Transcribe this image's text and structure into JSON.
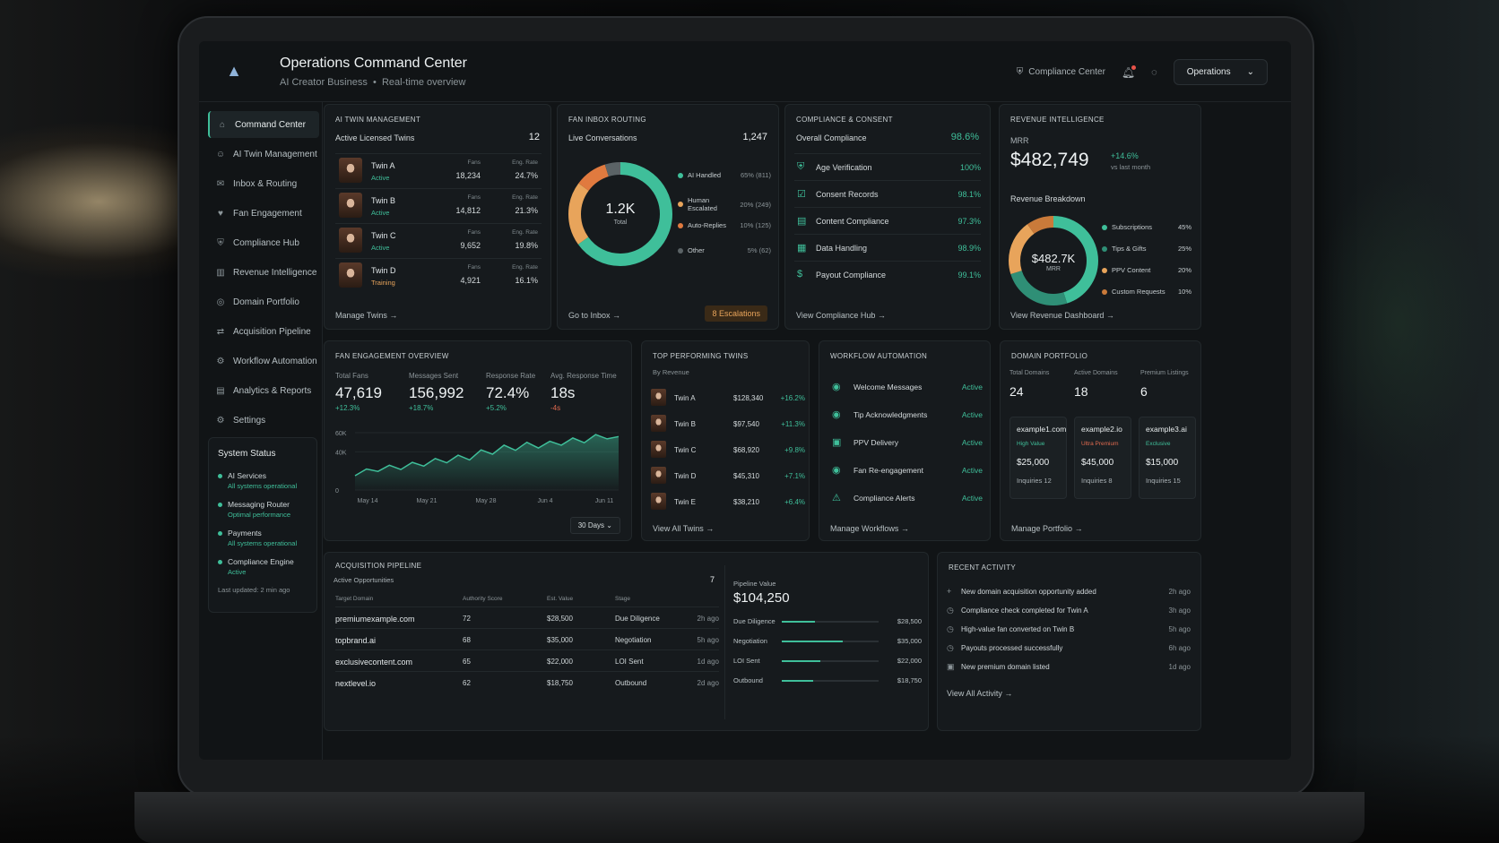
{
  "header": {
    "title": "Operations Command Center",
    "subtitle": "AI Creator Business",
    "subtitle_sep": "•",
    "subtitle_right": "Real-time overview",
    "compliance_link": "Compliance Center",
    "workspace": "Operations"
  },
  "sidebar": {
    "items": [
      {
        "label": "Command Center",
        "icon": "home-icon",
        "glyph": "⌂"
      },
      {
        "label": "AI Twin Management",
        "icon": "users-icon",
        "glyph": "☺"
      },
      {
        "label": "Inbox & Routing",
        "icon": "inbox-icon",
        "glyph": "✉"
      },
      {
        "label": "Fan Engagement",
        "icon": "chat-icon",
        "glyph": "♥"
      },
      {
        "label": "Compliance Hub",
        "icon": "shield-icon",
        "glyph": "⛨"
      },
      {
        "label": "Revenue Intelligence",
        "icon": "bar-chart-icon",
        "glyph": "▥"
      },
      {
        "label": "Domain Portfolio",
        "icon": "globe-icon",
        "glyph": "◎"
      },
      {
        "label": "Acquisition Pipeline",
        "icon": "pipeline-icon",
        "glyph": "⇄"
      },
      {
        "label": "Workflow Automation",
        "icon": "workflow-icon",
        "glyph": "⚙"
      },
      {
        "label": "Analytics & Reports",
        "icon": "analytics-icon",
        "glyph": "▤"
      },
      {
        "label": "Settings",
        "icon": "gear-icon",
        "glyph": "⚙"
      }
    ],
    "status": {
      "title": "System Status",
      "rows": [
        {
          "name": "AI Services",
          "state": "All systems operational"
        },
        {
          "name": "Messaging Router",
          "state": "Optimal performance"
        },
        {
          "name": "Payments",
          "state": "All systems operational"
        },
        {
          "name": "Compliance Engine",
          "state": "Active"
        }
      ],
      "updated": "Last updated: 2 min ago"
    }
  },
  "twins": {
    "title": "AI TWIN MANAGEMENT",
    "active_label": "Active Licensed Twins",
    "active_count": "12",
    "fans_label": "Fans",
    "eng_label": "Eng. Rate",
    "rows": [
      {
        "name": "Twin A",
        "state": "Active",
        "fans": "18,234",
        "eng": "24.7%"
      },
      {
        "name": "Twin B",
        "state": "Active",
        "fans": "14,812",
        "eng": "21.3%"
      },
      {
        "name": "Twin C",
        "state": "Active",
        "fans": "9,652",
        "eng": "19.8%"
      },
      {
        "name": "Twin D",
        "state": "Training",
        "fans": "4,921",
        "eng": "16.1%"
      }
    ],
    "link": "Manage Twins"
  },
  "inbox": {
    "title": "FAN INBOX ROUTING",
    "live_label": "Live Conversations",
    "live_count": "1,247",
    "center_value": "1.2K",
    "center_label": "Total",
    "legend": [
      {
        "label": "AI Handled",
        "value": "65% (811)",
        "pct": 65,
        "color": "#3fbf9a"
      },
      {
        "label": "Human Escalated",
        "value": "20% (249)",
        "pct": 20,
        "color": "#e8a45b"
      },
      {
        "label": "Auto-Replies",
        "value": "10% (125)",
        "pct": 10,
        "color": "#e07a3f"
      },
      {
        "label": "Other",
        "value": "5% (62)",
        "pct": 5,
        "color": "#5b6366"
      }
    ],
    "link": "Go to Inbox",
    "escalations": "8 Escalations"
  },
  "compliance": {
    "title": "COMPLIANCE & CONSENT",
    "overall_label": "Overall Compliance",
    "overall_value": "98.6%",
    "rows": [
      {
        "name": "Age Verification",
        "value": "100%",
        "icon": "shield-check-icon"
      },
      {
        "name": "Consent Records",
        "value": "98.1%",
        "icon": "document-check-icon"
      },
      {
        "name": "Content Compliance",
        "value": "97.3%",
        "icon": "clipboard-icon"
      },
      {
        "name": "Data Handling",
        "value": "98.9%",
        "icon": "database-icon"
      },
      {
        "name": "Payout Compliance",
        "value": "99.1%",
        "icon": "dollar-icon"
      }
    ],
    "link": "View Compliance Hub"
  },
  "revenue": {
    "title": "REVENUE INTELLIGENCE",
    "mrr_label": "MRR",
    "mrr_value": "$482,749",
    "mrr_change": "+14.6%",
    "mrr_change_label": "vs last month",
    "breakdown_label": "Revenue Breakdown",
    "center_value": "$482.7K",
    "center_label": "MRR",
    "legend": [
      {
        "label": "Subscriptions",
        "value": "45%",
        "pct": 45,
        "color": "#3fbf9a"
      },
      {
        "label": "Tips & Gifts",
        "value": "25%",
        "pct": 25,
        "color": "#2f8f76"
      },
      {
        "label": "PPV Content",
        "value": "20%",
        "pct": 20,
        "color": "#e8a45b"
      },
      {
        "label": "Custom Requests",
        "value": "10%",
        "pct": 10,
        "color": "#c97a3a"
      }
    ],
    "link": "View Revenue Dashboard"
  },
  "engagement": {
    "title": "FAN ENGAGEMENT OVERVIEW",
    "kpis": [
      {
        "label": "Total Fans",
        "value": "47,619",
        "change": "+12.3%"
      },
      {
        "label": "Messages Sent",
        "value": "156,992",
        "change": "+18.7%"
      },
      {
        "label": "Response Rate",
        "value": "72.4%",
        "change": "+5.2%"
      },
      {
        "label": "Avg. Response Time",
        "value": "18s",
        "change": "-4s"
      }
    ],
    "range_button": "30 Days",
    "chart_data": {
      "type": "area",
      "y_ticks": [
        "60K",
        "40K",
        "0"
      ],
      "x_ticks": [
        "May 14",
        "May 21",
        "May 28",
        "Jun 4",
        "Jun 11"
      ],
      "ylim": [
        0,
        60000
      ],
      "values": [
        15000,
        22000,
        19500,
        26000,
        21500,
        29000,
        25000,
        33000,
        28500,
        36500,
        31500,
        42000,
        37500,
        47000,
        41500,
        50000,
        44000,
        51000,
        47000,
        54500,
        49500,
        58000,
        53500,
        56000
      ]
    }
  },
  "top_twins": {
    "title": "TOP PERFORMING TWINS",
    "subtitle": "By Revenue",
    "rows": [
      {
        "name": "Twin A",
        "revenue": "$128,340",
        "change": "+16.2%"
      },
      {
        "name": "Twin B",
        "revenue": "$97,540",
        "change": "+11.3%"
      },
      {
        "name": "Twin C",
        "revenue": "$68,920",
        "change": "+9.8%"
      },
      {
        "name": "Twin D",
        "revenue": "$45,310",
        "change": "+7.1%"
      },
      {
        "name": "Twin E",
        "revenue": "$38,210",
        "change": "+6.4%"
      }
    ],
    "link": "View All Twins"
  },
  "workflow": {
    "title": "WORKFLOW AUTOMATION",
    "rows": [
      {
        "name": "Welcome Messages",
        "state": "Active"
      },
      {
        "name": "Tip Acknowledgments",
        "state": "Active"
      },
      {
        "name": "PPV Delivery",
        "state": "Active"
      },
      {
        "name": "Fan Re-engagement",
        "state": "Active"
      },
      {
        "name": "Compliance Alerts",
        "state": "Active"
      }
    ],
    "link": "Manage Workflows"
  },
  "domains": {
    "title": "DOMAIN PORTFOLIO",
    "stats": [
      {
        "label": "Total Domains",
        "value": "24"
      },
      {
        "label": "Active Domains",
        "value": "18"
      },
      {
        "label": "Premium Listings",
        "value": "6"
      }
    ],
    "cards": [
      {
        "name": "example1.com",
        "tag": "High Value",
        "price": "$25,000",
        "inquiries": "Inquiries  12"
      },
      {
        "name": "example2.io",
        "tag": "Ultra Premium",
        "price": "$45,000",
        "inquiries": "Inquiries  8"
      },
      {
        "name": "example3.ai",
        "tag": "Exclusive",
        "price": "$15,000",
        "inquiries": "Inquiries  15"
      }
    ],
    "link": "Manage Portfolio"
  },
  "acquisition": {
    "title": "ACQUISITION PIPELINE",
    "active_label": "Active Opportunities",
    "active_count": "7",
    "columns": [
      "Target Domain",
      "Authority Score",
      "Est. Value",
      "Stage"
    ],
    "rows": [
      {
        "domain": "premiumexample.com",
        "score": "72",
        "value": "$28,500",
        "stage": "Due Diligence",
        "time": "2h ago"
      },
      {
        "domain": "topbrand.ai",
        "score": "68",
        "value": "$35,000",
        "stage": "Negotiation",
        "time": "5h ago"
      },
      {
        "domain": "exclusivecontent.com",
        "score": "65",
        "value": "$22,000",
        "stage": "LOI Sent",
        "time": "1d ago"
      },
      {
        "domain": "nextlevel.io",
        "score": "62",
        "value": "$18,750",
        "stage": "Outbound",
        "time": "2d ago"
      }
    ],
    "pipeline_label": "Pipeline Value",
    "pipeline_value": "$104,250",
    "stages": [
      {
        "name": "Due Diligence",
        "value": "$28,500",
        "pct": 34
      },
      {
        "name": "Negotiation",
        "value": "$35,000",
        "pct": 63
      },
      {
        "name": "LOI Sent",
        "value": "$22,000",
        "pct": 40
      },
      {
        "name": "Outbound",
        "value": "$18,750",
        "pct": 32
      }
    ]
  },
  "activity": {
    "title": "RECENT ACTIVITY",
    "rows": [
      {
        "text": "New domain acquisition opportunity added",
        "time": "2h ago",
        "glyph": "+"
      },
      {
        "text": "Compliance check completed for Twin A",
        "time": "3h ago",
        "glyph": "◷"
      },
      {
        "text": "High-value fan converted on Twin B",
        "time": "5h ago",
        "glyph": "◷"
      },
      {
        "text": "Payouts processed successfully",
        "time": "6h ago",
        "glyph": "◷"
      },
      {
        "text": "New premium domain listed",
        "time": "1d ago",
        "glyph": "▣"
      }
    ],
    "link": "View All Activity"
  }
}
